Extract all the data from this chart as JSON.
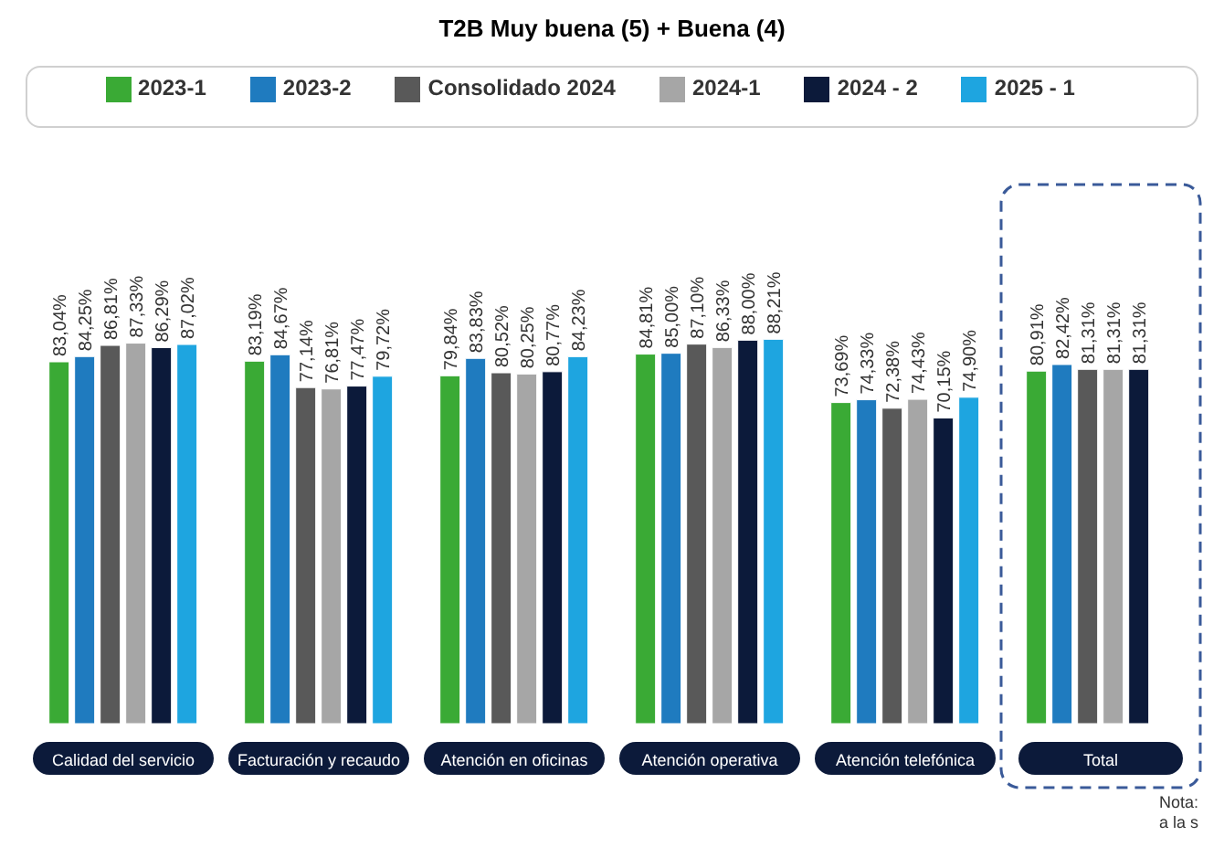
{
  "chart_data": {
    "type": "bar",
    "title": "T2B  Muy buena (5) + Buena (4)",
    "categories": [
      "Calidad del servicio",
      "Facturación y recaudo",
      "Atención en oficinas",
      "Atención operativa",
      "Atención telefónica",
      "Total"
    ],
    "series": [
      {
        "name": "2023-1",
        "color": "#3aaa35",
        "values": [
          83.04,
          83.19,
          79.84,
          84.81,
          73.69,
          80.91
        ],
        "value_labels": [
          "83,04%",
          "83,19%",
          "79,84%",
          "84,81%",
          "73,69%",
          "80,91%"
        ]
      },
      {
        "name": "2023-2",
        "color": "#1f7bbf",
        "values": [
          84.25,
          84.67,
          83.83,
          85.0,
          74.33,
          82.42
        ],
        "value_labels": [
          "84,25%",
          "84,67%",
          "83,83%",
          "85,00%",
          "74,33%",
          "82,42%"
        ]
      },
      {
        "name": "Consolidado 2024",
        "color": "#595959",
        "values": [
          86.81,
          77.14,
          80.52,
          87.1,
          72.38,
          81.31
        ],
        "value_labels": [
          "86,81%",
          "77,14%",
          "80,52%",
          "87,10%",
          "72,38%",
          "81,31%"
        ]
      },
      {
        "name": "2024-1",
        "color": "#a6a6a6",
        "values": [
          87.33,
          76.81,
          80.25,
          86.33,
          74.43,
          81.31
        ],
        "value_labels": [
          "87,33%",
          "76,81%",
          "80,25%",
          "86,33%",
          "74,43%",
          "81,31%"
        ]
      },
      {
        "name": "2024 - 2",
        "color": "#0c1a3a",
        "values": [
          86.29,
          77.47,
          80.77,
          88.0,
          70.15,
          81.31
        ],
        "value_labels": [
          "86,29%",
          "77,47%",
          "80,77%",
          "88,00%",
          "70,15%",
          "81,31%"
        ]
      },
      {
        "name": "2025 - 1",
        "color": "#1ea5e0",
        "values": [
          87.02,
          79.72,
          84.23,
          88.21,
          74.9,
          null
        ],
        "value_labels": [
          "87,02%",
          "79,72%",
          "84,23%",
          "88,21%",
          "74,90%",
          null
        ]
      }
    ],
    "legend": "top",
    "grid": false,
    "annotations": [
      "Nota:",
      "a la s"
    ]
  }
}
